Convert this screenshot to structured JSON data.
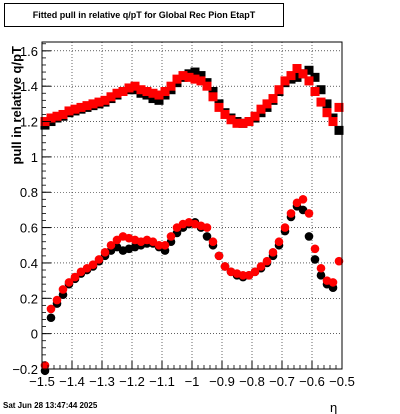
{
  "chart_data": {
    "type": "scatter",
    "title": "Fitted pull in relative q/pT for Global Rec Pion EtapT",
    "xlabel": "η",
    "ylabel": "pull in relative q/pT",
    "xlim": [
      -1.5,
      -0.5
    ],
    "ylim": [
      -0.2,
      1.65
    ],
    "grid": true,
    "x_ticks": [
      {
        "v": -1.5,
        "label": "−1.5"
      },
      {
        "v": -1.4,
        "label": "−1.4"
      },
      {
        "v": -1.3,
        "label": "−1.3"
      },
      {
        "v": -1.2,
        "label": "−1.2"
      },
      {
        "v": -1.1,
        "label": "−1.1"
      },
      {
        "v": -1.0,
        "label": "−1"
      },
      {
        "v": -0.9,
        "label": "−0.9"
      },
      {
        "v": -0.8,
        "label": "−0.8"
      },
      {
        "v": -0.7,
        "label": "−0.7"
      },
      {
        "v": -0.6,
        "label": "−0.6"
      },
      {
        "v": -0.5,
        "label": "−0.5"
      }
    ],
    "y_ticks": [
      {
        "v": -0.2,
        "label": "−0.2"
      },
      {
        "v": 0,
        "label": "0"
      },
      {
        "v": 0.2,
        "label": "0.2"
      },
      {
        "v": 0.4,
        "label": "0.4"
      },
      {
        "v": 0.6,
        "label": "0.6"
      },
      {
        "v": 0.8,
        "label": "0.8"
      },
      {
        "v": 1.0,
        "label": "1"
      },
      {
        "v": 1.2,
        "label": "1.2"
      },
      {
        "v": 1.4,
        "label": "1.4"
      },
      {
        "v": 1.6,
        "label": "1.6"
      }
    ],
    "x": [
      -1.49,
      -1.47,
      -1.45,
      -1.43,
      -1.41,
      -1.39,
      -1.37,
      -1.35,
      -1.33,
      -1.31,
      -1.29,
      -1.27,
      -1.25,
      -1.23,
      -1.21,
      -1.19,
      -1.17,
      -1.15,
      -1.13,
      -1.11,
      -1.09,
      -1.07,
      -1.05,
      -1.03,
      -1.01,
      -0.99,
      -0.97,
      -0.95,
      -0.93,
      -0.91,
      -0.89,
      -0.87,
      -0.85,
      -0.83,
      -0.81,
      -0.79,
      -0.77,
      -0.75,
      -0.73,
      -0.71,
      -0.69,
      -0.67,
      -0.65,
      -0.63,
      -0.61,
      -0.59,
      -0.57,
      -0.55,
      -0.53,
      -0.51
    ],
    "series": [
      {
        "group": "width",
        "marker": "square",
        "color": "#000000",
        "values": [
          1.18,
          1.2,
          1.22,
          1.23,
          1.25,
          1.26,
          1.27,
          1.28,
          1.29,
          1.3,
          1.31,
          1.33,
          1.35,
          1.37,
          1.38,
          1.38,
          1.36,
          1.35,
          1.33,
          1.32,
          1.35,
          1.38,
          1.42,
          1.45,
          1.47,
          1.48,
          1.46,
          1.42,
          1.37,
          1.3,
          1.25,
          1.22,
          1.2,
          1.19,
          1.2,
          1.22,
          1.25,
          1.28,
          1.32,
          1.37,
          1.42,
          1.44,
          1.45,
          1.47,
          1.49,
          1.45,
          1.38,
          1.3,
          1.22,
          1.15
        ]
      },
      {
        "group": "width",
        "marker": "square",
        "color": "#ff0000",
        "values": [
          1.2,
          1.22,
          1.23,
          1.24,
          1.26,
          1.27,
          1.28,
          1.29,
          1.3,
          1.31,
          1.32,
          1.34,
          1.36,
          1.37,
          1.39,
          1.4,
          1.38,
          1.37,
          1.36,
          1.35,
          1.37,
          1.4,
          1.44,
          1.46,
          1.45,
          1.44,
          1.43,
          1.4,
          1.34,
          1.28,
          1.24,
          1.21,
          1.19,
          1.19,
          1.2,
          1.23,
          1.27,
          1.3,
          1.33,
          1.38,
          1.43,
          1.46,
          1.5,
          1.47,
          1.43,
          1.37,
          1.31,
          1.25,
          1.2,
          1.28
        ]
      },
      {
        "group": "mean",
        "marker": "circle",
        "color": "#000000",
        "values": [
          -0.21,
          0.09,
          0.17,
          0.22,
          0.28,
          0.31,
          0.34,
          0.36,
          0.38,
          0.41,
          0.44,
          0.47,
          0.49,
          0.47,
          0.48,
          0.49,
          0.5,
          0.51,
          0.51,
          0.49,
          0.47,
          0.52,
          0.57,
          0.6,
          0.62,
          0.63,
          0.6,
          0.55,
          0.5,
          0.44,
          0.38,
          0.35,
          0.33,
          0.32,
          0.33,
          0.35,
          0.37,
          0.4,
          0.44,
          0.5,
          0.58,
          0.66,
          0.72,
          0.7,
          0.55,
          0.42,
          0.33,
          0.28,
          0.26,
          null
        ]
      },
      {
        "group": "mean",
        "marker": "circle",
        "color": "#ff0000",
        "values": [
          -0.18,
          0.14,
          0.19,
          0.25,
          0.29,
          0.32,
          0.35,
          0.37,
          0.39,
          0.42,
          0.46,
          0.5,
          0.53,
          0.55,
          0.54,
          0.53,
          0.52,
          0.53,
          0.52,
          0.5,
          0.5,
          0.55,
          0.6,
          0.62,
          0.63,
          0.62,
          0.61,
          0.6,
          0.52,
          0.44,
          0.38,
          0.35,
          0.34,
          0.33,
          0.33,
          0.35,
          0.38,
          0.41,
          0.46,
          0.52,
          0.6,
          0.68,
          0.74,
          0.76,
          0.68,
          0.48,
          0.37,
          0.3,
          0.29,
          0.41
        ]
      }
    ]
  },
  "footer": {
    "date_text": "Sat Jun 28 13:47:44 2025"
  },
  "style": {
    "black": "#000000",
    "red": "#ff0000",
    "grid": "#000000"
  }
}
